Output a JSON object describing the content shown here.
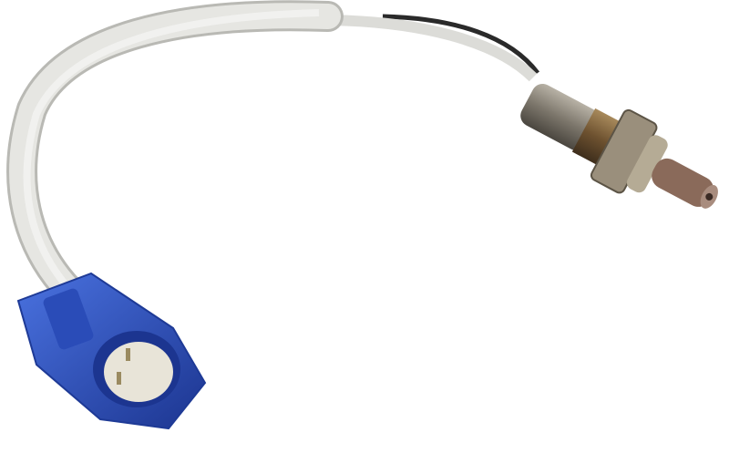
{
  "image": {
    "colors": {
      "background": "#ffffff",
      "cable_sheath": "#e4e4e0",
      "cable_shadow": "#b9b9b4",
      "connector": "#2f56c8",
      "connector_dark": "#1e3a96",
      "terminal_insert": "#e8e4d8",
      "sensor_metal": "#8a8578",
      "sensor_bronze": "#7a5a30",
      "hex_nut": "#9a8f7c",
      "probe_tip": "#8a6a5a",
      "black_wire": "#2a2a2a"
    }
  }
}
